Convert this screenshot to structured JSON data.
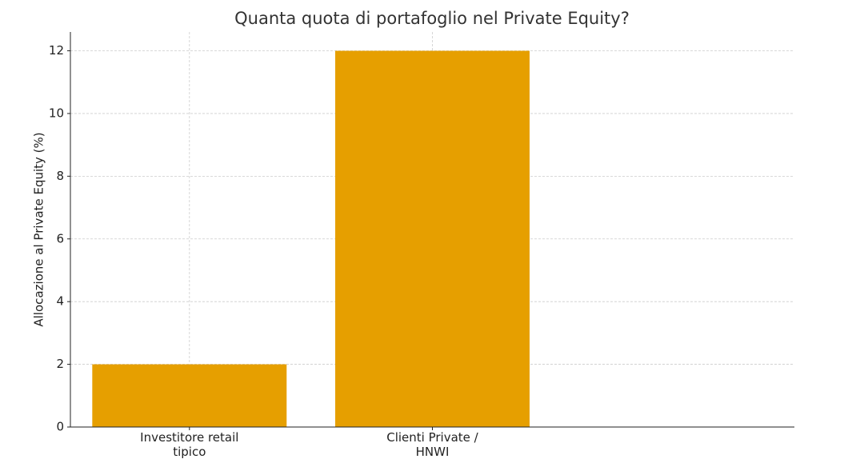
{
  "chart_data": {
    "type": "bar",
    "title": "Quanta quota di portafoglio nel Private Equity?",
    "y_label": "Allocazione al Private Equity (%)",
    "categories": [
      "Investitore retail\ntipico",
      "Clienti Private /\nHNWI"
    ],
    "values": [
      2,
      12
    ],
    "color": "#E69F00",
    "ylim": [
      0,
      12.6
    ],
    "yticks": [
      0,
      2,
      4,
      6,
      8,
      10,
      12
    ],
    "grid": true
  }
}
